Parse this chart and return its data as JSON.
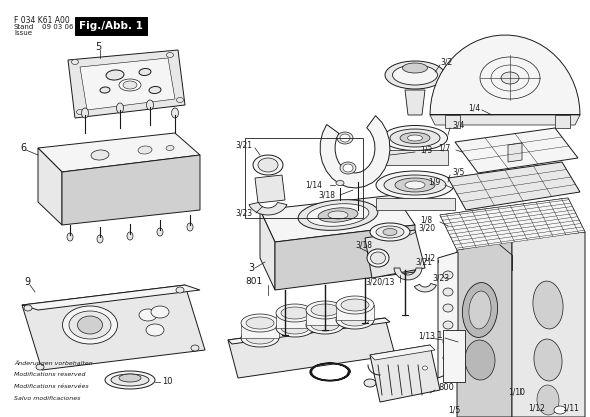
{
  "bg_color": "#ffffff",
  "line_color": "#1a1a1a",
  "fill_light": "#f5f5f5",
  "fill_mid": "#e8e8e8",
  "fill_dark": "#d0d0d0",
  "fill_darker": "#b8b8b8",
  "header_line1": "F 034 K61 A00",
  "header_line2": "Stand",
  "header_line3": "Issue",
  "header_date": "09 03 06",
  "title_text": "Fig./Abb. 1",
  "footer_lines": [
    "Änderungen vorbehalten",
    "Modifications reserved",
    "Modifications réservées",
    "Salvo modificaciones"
  ],
  "fig_width": 5.9,
  "fig_height": 4.17,
  "dpi": 100
}
